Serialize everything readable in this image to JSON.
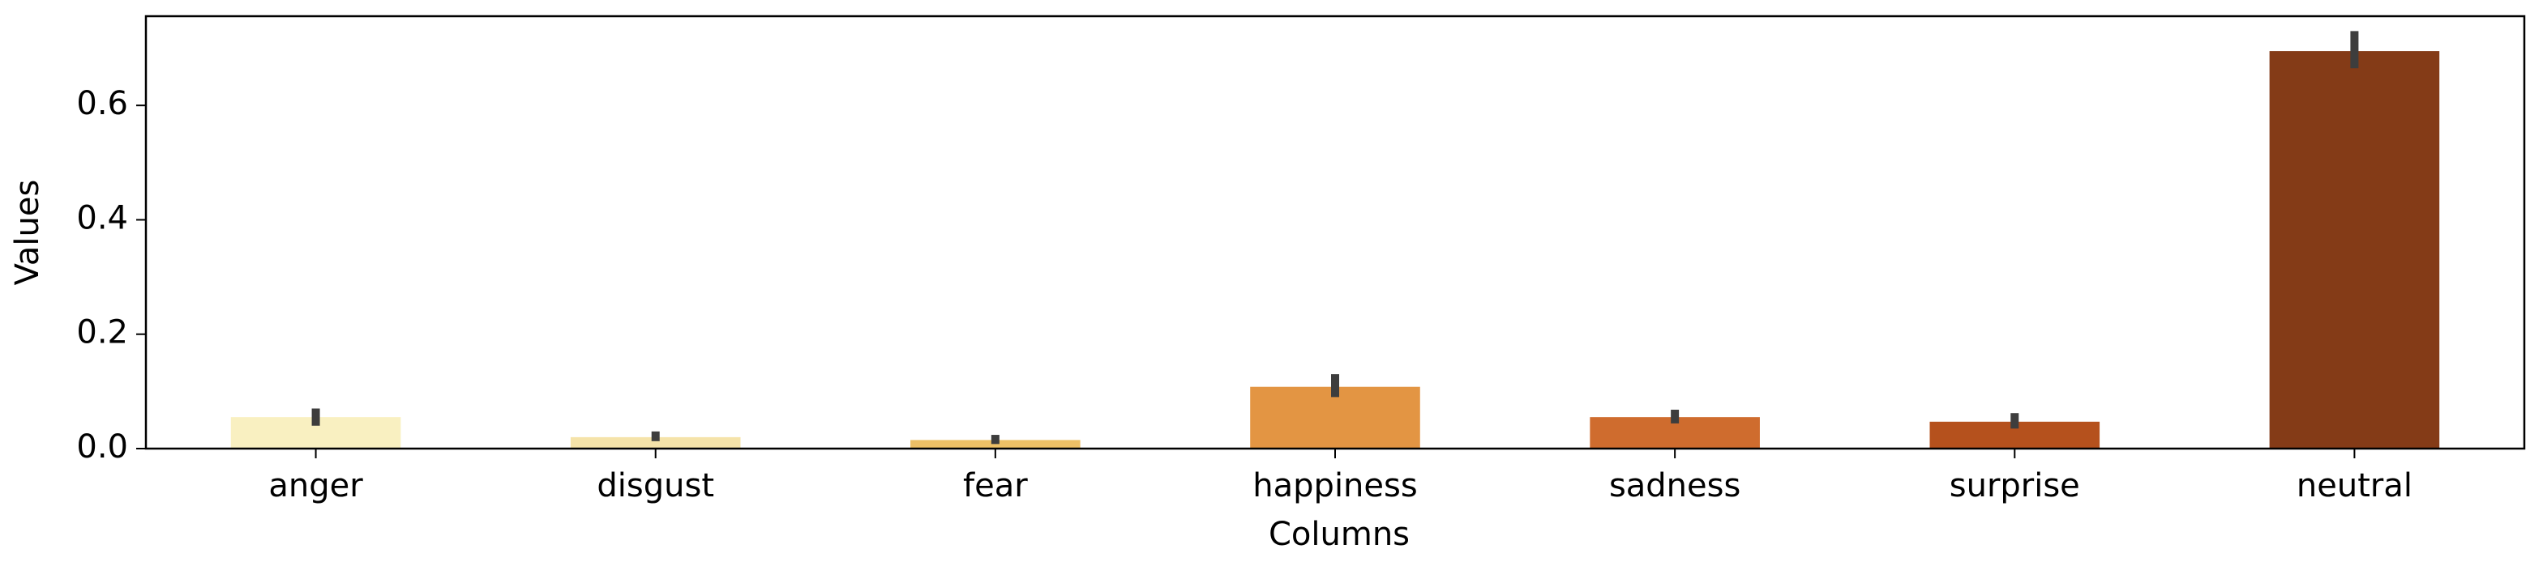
{
  "chart_data": {
    "type": "bar",
    "x_label": "Columns",
    "y_label": "Values",
    "categories": [
      "anger",
      "disgust",
      "fear",
      "happiness",
      "sadness",
      "surprise",
      "neutral"
    ],
    "values": [
      0.055,
      0.02,
      0.015,
      0.108,
      0.055,
      0.047,
      0.695
    ],
    "error_low": [
      0.04,
      0.013,
      0.008,
      0.09,
      0.044,
      0.035,
      0.665
    ],
    "error_high": [
      0.07,
      0.03,
      0.024,
      0.13,
      0.068,
      0.062,
      0.73
    ],
    "colors": [
      "#f9f0c1",
      "#f5e3a9",
      "#edc066",
      "#e39543",
      "#cf6c2e",
      "#b5511d",
      "#843b17"
    ],
    "error_color": "#3d3d3d",
    "ylim": [
      0,
      0.756
    ],
    "yticks": [
      {
        "value": 0,
        "label": "0.0"
      },
      0.2,
      0.4,
      0.6
    ],
    "grid": false
  }
}
